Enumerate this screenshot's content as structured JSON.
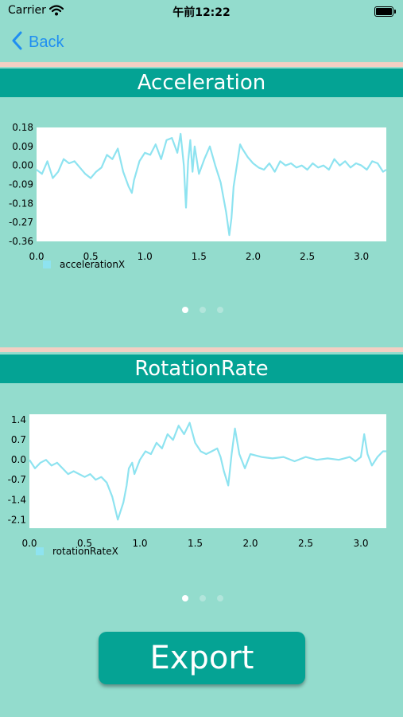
{
  "status_bar": {
    "carrier": "Carrier",
    "time": "午前12:22"
  },
  "nav": {
    "back_label": "Back"
  },
  "sections": [
    {
      "title": "Acceleration"
    },
    {
      "title": "RotationRate"
    }
  ],
  "charts": [
    {
      "type": "line",
      "title": "",
      "xlim": [
        0.0,
        3.23
      ],
      "ylim": [
        -0.36,
        0.18
      ],
      "xticks": [
        "0.0",
        "0.5",
        "1.0",
        "1.5",
        "2.0",
        "2.5",
        "3.0"
      ],
      "yticks": [
        "0.18",
        "0.09",
        "0.00",
        "-0.09",
        "-0.18",
        "-0.27",
        "-0.36"
      ],
      "line_color": "#8ee3f0",
      "legend_placement": "bottom-left",
      "series": [
        {
          "name": "accelerationX",
          "x": [
            0.0,
            0.05,
            0.1,
            0.15,
            0.2,
            0.25,
            0.3,
            0.35,
            0.4,
            0.45,
            0.5,
            0.55,
            0.6,
            0.65,
            0.7,
            0.75,
            0.8,
            0.85,
            0.88,
            0.9,
            0.95,
            1.0,
            1.05,
            1.1,
            1.15,
            1.2,
            1.25,
            1.3,
            1.33,
            1.36,
            1.38,
            1.4,
            1.42,
            1.44,
            1.46,
            1.5,
            1.55,
            1.6,
            1.65,
            1.7,
            1.75,
            1.78,
            1.8,
            1.82,
            1.85,
            1.88,
            1.9,
            1.95,
            2.0,
            2.05,
            2.1,
            2.15,
            2.2,
            2.25,
            2.3,
            2.35,
            2.4,
            2.45,
            2.5,
            2.55,
            2.6,
            2.65,
            2.7,
            2.75,
            2.8,
            2.85,
            2.9,
            2.95,
            3.0,
            3.05,
            3.1,
            3.15,
            3.2,
            3.23
          ],
          "y": [
            -0.02,
            -0.04,
            0.02,
            -0.06,
            -0.03,
            0.03,
            0.01,
            0.02,
            -0.01,
            -0.04,
            -0.06,
            -0.03,
            -0.01,
            0.05,
            0.03,
            0.08,
            -0.03,
            -0.1,
            -0.13,
            -0.07,
            0.02,
            0.06,
            0.05,
            0.1,
            0.03,
            0.12,
            0.13,
            0.06,
            0.15,
            0.0,
            -0.2,
            0.02,
            0.12,
            -0.03,
            0.09,
            -0.04,
            0.03,
            0.09,
            0.0,
            -0.08,
            -0.22,
            -0.33,
            -0.25,
            -0.1,
            0.0,
            0.1,
            0.08,
            0.04,
            0.01,
            -0.01,
            -0.02,
            0.01,
            -0.03,
            0.02,
            0.0,
            0.01,
            -0.01,
            0.0,
            -0.02,
            0.01,
            -0.01,
            0.0,
            -0.02,
            0.03,
            0.0,
            0.02,
            -0.01,
            0.01,
            0.0,
            -0.02,
            0.02,
            0.01,
            -0.03,
            -0.02
          ]
        }
      ]
    },
    {
      "type": "line",
      "title": "",
      "xlim": [
        0.0,
        3.23
      ],
      "ylim": [
        -2.4,
        1.6
      ],
      "xticks": [
        "0.0",
        "0.5",
        "1.0",
        "1.5",
        "2.0",
        "2.5",
        "3.0"
      ],
      "yticks": [
        "1.4",
        "0.7",
        "0.0",
        "-0.7",
        "-1.4",
        "-2.1"
      ],
      "line_color": "#8ee3f0",
      "legend_placement": "bottom-left",
      "series": [
        {
          "name": "rotationRateX",
          "x": [
            0.0,
            0.05,
            0.1,
            0.15,
            0.2,
            0.25,
            0.3,
            0.35,
            0.4,
            0.45,
            0.5,
            0.55,
            0.6,
            0.65,
            0.7,
            0.75,
            0.8,
            0.85,
            0.88,
            0.9,
            0.93,
            0.95,
            1.0,
            1.05,
            1.1,
            1.15,
            1.2,
            1.25,
            1.3,
            1.35,
            1.4,
            1.45,
            1.5,
            1.55,
            1.6,
            1.65,
            1.7,
            1.73,
            1.76,
            1.8,
            1.83,
            1.86,
            1.9,
            1.95,
            2.0,
            2.1,
            2.2,
            2.3,
            2.4,
            2.5,
            2.6,
            2.7,
            2.8,
            2.9,
            2.95,
            3.0,
            3.03,
            3.06,
            3.1,
            3.15,
            3.2,
            3.23
          ],
          "y": [
            0.0,
            -0.3,
            -0.1,
            0.0,
            -0.2,
            -0.1,
            -0.3,
            -0.5,
            -0.4,
            -0.5,
            -0.6,
            -0.5,
            -0.7,
            -0.6,
            -0.8,
            -1.3,
            -2.1,
            -1.5,
            -0.9,
            -0.3,
            -0.1,
            -0.5,
            0.0,
            0.3,
            0.2,
            0.6,
            0.4,
            0.9,
            0.7,
            1.2,
            0.9,
            1.3,
            0.6,
            0.3,
            0.2,
            0.3,
            0.4,
            0.1,
            -0.4,
            -0.9,
            0.2,
            1.1,
            0.2,
            -0.3,
            0.2,
            0.1,
            0.05,
            0.1,
            -0.05,
            0.1,
            0.0,
            0.05,
            0.0,
            0.1,
            -0.05,
            0.1,
            0.9,
            0.2,
            -0.2,
            0.1,
            0.3,
            0.3
          ]
        }
      ]
    }
  ],
  "pager": {
    "count": 3,
    "active": 0
  },
  "actions": {
    "export_label": "Export"
  },
  "icons": {
    "wifi": "wifi-icon",
    "battery": "battery-icon",
    "back": "chevron-left-icon"
  }
}
